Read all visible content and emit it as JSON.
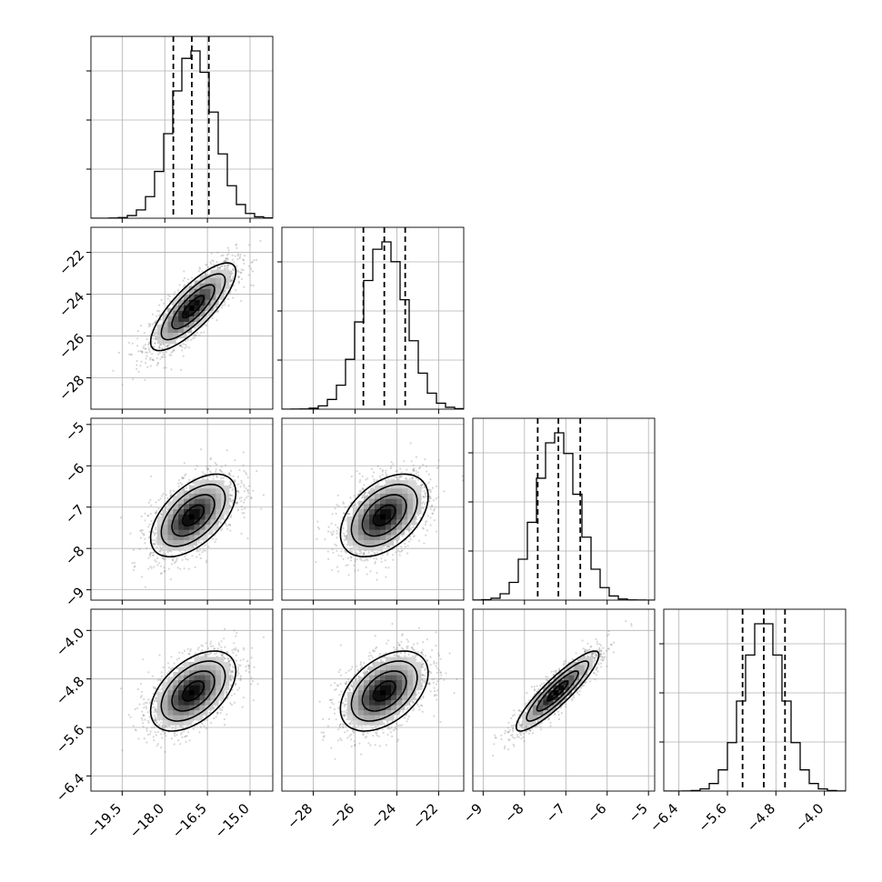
{
  "chart_data": {
    "type": "corner",
    "title": "",
    "grid": true,
    "colors": {
      "contour": "#000000",
      "points": "#8c8c8c",
      "grid": "#b0b0b0",
      "quantile": "#000000"
    },
    "parameters": [
      {
        "label": "",
        "range": [
          -20.6,
          -14.2
        ],
        "ticks": [
          -19.5,
          -18.0,
          -16.5,
          -15.0
        ],
        "tick_labels": [
          "−19.5",
          "−18.0",
          "−16.5",
          "−15.0"
        ],
        "mean": -17.0,
        "std": 0.75,
        "quantiles": [
          -17.7,
          -17.05,
          -16.45
        ]
      },
      {
        "label": "",
        "range": [
          -29.5,
          -20.8
        ],
        "ticks": [
          -28,
          -26,
          -24,
          -22
        ],
        "tick_labels": [
          "−28",
          "−26",
          "−24",
          "−22"
        ],
        "mean": -24.6,
        "std": 1.05,
        "quantiles": [
          -25.6,
          -24.6,
          -23.6
        ]
      },
      {
        "label": "",
        "range": [
          -9.25,
          -4.85
        ],
        "ticks": [
          -9,
          -8,
          -7,
          -6,
          -5
        ],
        "tick_labels": [
          "−9",
          "−8",
          "−7",
          "−6",
          "−5"
        ],
        "mean": -7.2,
        "std": 0.5,
        "quantiles": [
          -7.68,
          -7.18,
          -6.65
        ]
      },
      {
        "label": "",
        "range": [
          -6.65,
          -3.65
        ],
        "ticks": [
          -6.4,
          -5.6,
          -4.8,
          -4.0
        ],
        "tick_labels": [
          "−6.4",
          "−5.6",
          "−4.8",
          "−4.0"
        ],
        "mean": -5.0,
        "std": 0.33,
        "quantiles": [
          -5.35,
          -5.0,
          -4.65
        ]
      }
    ],
    "correlations": [
      [
        1.0,
        0.8,
        0.55,
        0.5
      ],
      [
        0.8,
        1.0,
        0.45,
        0.45
      ],
      [
        0.55,
        0.45,
        1.0,
        0.9
      ],
      [
        0.5,
        0.45,
        0.9,
        1.0
      ]
    ],
    "samples_per_panel": 1800,
    "hist_bins": 20
  }
}
